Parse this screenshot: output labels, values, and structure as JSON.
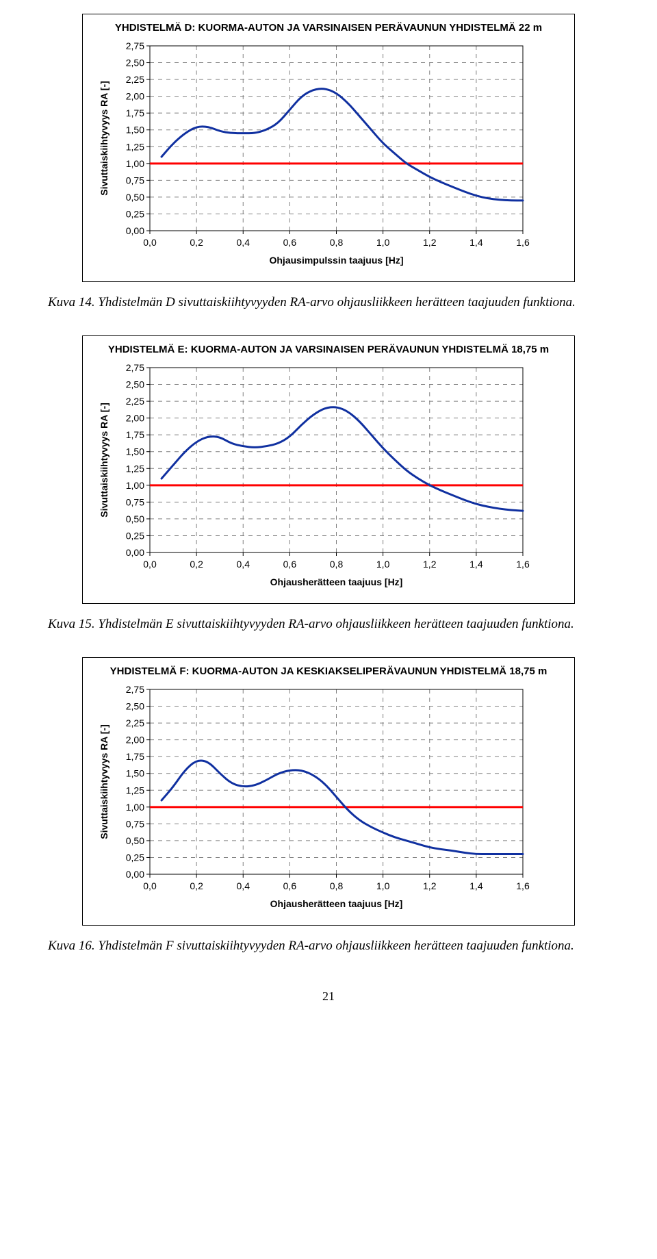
{
  "charts": [
    {
      "title": "YHDISTELMÄ D: KUORMA-AUTON JA VARSINAISEN PERÄVAUNUN YHDISTELMÄ 22 m",
      "ylabel": "Sivuttaiskiihtyvyys RA [-]",
      "xlabel": "Ohjausimpulssin taajuus [Hz]",
      "xticks": [
        "0,0",
        "0,2",
        "0,4",
        "0,6",
        "0,8",
        "1,0",
        "1,2",
        "1,4",
        "1,6"
      ],
      "yticks": [
        "2,75",
        "2,50",
        "2,25",
        "2,00",
        "1,75",
        "1,50",
        "1,25",
        "1,00",
        "0,75",
        "0,50",
        "0,25",
        "0,00"
      ],
      "ylim": [
        0,
        2.75
      ],
      "xlim": [
        0,
        1.6
      ],
      "ref_line_value": 1.0,
      "ref_line_color": "#ff0000",
      "data_color": "#1030a0",
      "data_width": 3,
      "grid_color": "#808080",
      "grid_dash": "6,6",
      "axis_color": "#000000",
      "background": "#ffffff",
      "title_fontsize": 15,
      "label_fontsize": 14,
      "tick_fontsize": 14,
      "points": [
        {
          "x": 0.05,
          "y": 1.1
        },
        {
          "x": 0.1,
          "y": 1.3
        },
        {
          "x": 0.15,
          "y": 1.45
        },
        {
          "x": 0.2,
          "y": 1.55
        },
        {
          "x": 0.25,
          "y": 1.55
        },
        {
          "x": 0.3,
          "y": 1.48
        },
        {
          "x": 0.35,
          "y": 1.45
        },
        {
          "x": 0.4,
          "y": 1.45
        },
        {
          "x": 0.45,
          "y": 1.45
        },
        {
          "x": 0.5,
          "y": 1.5
        },
        {
          "x": 0.55,
          "y": 1.6
        },
        {
          "x": 0.6,
          "y": 1.8
        },
        {
          "x": 0.65,
          "y": 2.0
        },
        {
          "x": 0.7,
          "y": 2.1
        },
        {
          "x": 0.75,
          "y": 2.12
        },
        {
          "x": 0.8,
          "y": 2.05
        },
        {
          "x": 0.85,
          "y": 1.9
        },
        {
          "x": 0.9,
          "y": 1.7
        },
        {
          "x": 0.95,
          "y": 1.5
        },
        {
          "x": 1.0,
          "y": 1.3
        },
        {
          "x": 1.05,
          "y": 1.15
        },
        {
          "x": 1.1,
          "y": 1.0
        },
        {
          "x": 1.15,
          "y": 0.9
        },
        {
          "x": 1.2,
          "y": 0.8
        },
        {
          "x": 1.25,
          "y": 0.72
        },
        {
          "x": 1.3,
          "y": 0.65
        },
        {
          "x": 1.35,
          "y": 0.58
        },
        {
          "x": 1.4,
          "y": 0.52
        },
        {
          "x": 1.45,
          "y": 0.48
        },
        {
          "x": 1.5,
          "y": 0.46
        },
        {
          "x": 1.55,
          "y": 0.45
        },
        {
          "x": 1.6,
          "y": 0.45
        }
      ]
    },
    {
      "title": "YHDISTELMÄ E: KUORMA-AUTON JA VARSINAISEN PERÄVAUNUN YHDISTELMÄ 18,75 m",
      "ylabel": "Sivuttaiskiihtyvyys RA [-]",
      "xlabel": "Ohjausherätteen taajuus [Hz]",
      "xticks": [
        "0,0",
        "0,2",
        "0,4",
        "0,6",
        "0,8",
        "1,0",
        "1,2",
        "1,4",
        "1,6"
      ],
      "yticks": [
        "2,75",
        "2,50",
        "2,25",
        "2,00",
        "1,75",
        "1,50",
        "1,25",
        "1,00",
        "0,75",
        "0,50",
        "0,25",
        "0,00"
      ],
      "ylim": [
        0,
        2.75
      ],
      "xlim": [
        0,
        1.6
      ],
      "ref_line_value": 1.0,
      "ref_line_color": "#ff0000",
      "data_color": "#1030a0",
      "data_width": 3,
      "grid_color": "#808080",
      "grid_dash": "6,6",
      "axis_color": "#000000",
      "background": "#ffffff",
      "title_fontsize": 15,
      "label_fontsize": 14,
      "tick_fontsize": 14,
      "points": [
        {
          "x": 0.05,
          "y": 1.1
        },
        {
          "x": 0.1,
          "y": 1.3
        },
        {
          "x": 0.15,
          "y": 1.5
        },
        {
          "x": 0.2,
          "y": 1.65
        },
        {
          "x": 0.25,
          "y": 1.73
        },
        {
          "x": 0.3,
          "y": 1.72
        },
        {
          "x": 0.35,
          "y": 1.62
        },
        {
          "x": 0.4,
          "y": 1.58
        },
        {
          "x": 0.45,
          "y": 1.56
        },
        {
          "x": 0.5,
          "y": 1.58
        },
        {
          "x": 0.55,
          "y": 1.62
        },
        {
          "x": 0.6,
          "y": 1.72
        },
        {
          "x": 0.65,
          "y": 1.9
        },
        {
          "x": 0.7,
          "y": 2.05
        },
        {
          "x": 0.75,
          "y": 2.15
        },
        {
          "x": 0.8,
          "y": 2.17
        },
        {
          "x": 0.85,
          "y": 2.1
        },
        {
          "x": 0.9,
          "y": 1.95
        },
        {
          "x": 0.95,
          "y": 1.75
        },
        {
          "x": 1.0,
          "y": 1.55
        },
        {
          "x": 1.05,
          "y": 1.38
        },
        {
          "x": 1.1,
          "y": 1.22
        },
        {
          "x": 1.15,
          "y": 1.1
        },
        {
          "x": 1.2,
          "y": 1.0
        },
        {
          "x": 1.25,
          "y": 0.92
        },
        {
          "x": 1.3,
          "y": 0.85
        },
        {
          "x": 1.35,
          "y": 0.78
        },
        {
          "x": 1.4,
          "y": 0.72
        },
        {
          "x": 1.45,
          "y": 0.68
        },
        {
          "x": 1.5,
          "y": 0.65
        },
        {
          "x": 1.55,
          "y": 0.63
        },
        {
          "x": 1.6,
          "y": 0.62
        }
      ]
    },
    {
      "title": "YHDISTELMÄ F: KUORMA-AUTON JA KESKIAKSELIPERÄVAUNUN YHDISTELMÄ 18,75 m",
      "ylabel": "Sivuttaiskiihtyvyys RA [-]",
      "xlabel": "Ohjausherätteen taajuus [Hz]",
      "xticks": [
        "0,0",
        "0,2",
        "0,4",
        "0,6",
        "0,8",
        "1,0",
        "1,2",
        "1,4",
        "1,6"
      ],
      "yticks": [
        "2,75",
        "2,50",
        "2,25",
        "2,00",
        "1,75",
        "1,50",
        "1,25",
        "1,00",
        "0,75",
        "0,50",
        "0,25",
        "0,00"
      ],
      "ylim": [
        0,
        2.75
      ],
      "xlim": [
        0,
        1.6
      ],
      "ref_line_value": 1.0,
      "ref_line_color": "#ff0000",
      "data_color": "#1030a0",
      "data_width": 3,
      "grid_color": "#808080",
      "grid_dash": "6,6",
      "axis_color": "#000000",
      "background": "#ffffff",
      "title_fontsize": 15,
      "label_fontsize": 14,
      "tick_fontsize": 14,
      "points": [
        {
          "x": 0.05,
          "y": 1.1
        },
        {
          "x": 0.1,
          "y": 1.3
        },
        {
          "x": 0.15,
          "y": 1.55
        },
        {
          "x": 0.2,
          "y": 1.7
        },
        {
          "x": 0.25,
          "y": 1.68
        },
        {
          "x": 0.3,
          "y": 1.5
        },
        {
          "x": 0.35,
          "y": 1.35
        },
        {
          "x": 0.4,
          "y": 1.3
        },
        {
          "x": 0.45,
          "y": 1.32
        },
        {
          "x": 0.5,
          "y": 1.4
        },
        {
          "x": 0.55,
          "y": 1.5
        },
        {
          "x": 0.6,
          "y": 1.55
        },
        {
          "x": 0.65,
          "y": 1.55
        },
        {
          "x": 0.7,
          "y": 1.48
        },
        {
          "x": 0.75,
          "y": 1.35
        },
        {
          "x": 0.8,
          "y": 1.15
        },
        {
          "x": 0.85,
          "y": 0.95
        },
        {
          "x": 0.9,
          "y": 0.8
        },
        {
          "x": 0.95,
          "y": 0.7
        },
        {
          "x": 1.0,
          "y": 0.62
        },
        {
          "x": 1.05,
          "y": 0.55
        },
        {
          "x": 1.1,
          "y": 0.5
        },
        {
          "x": 1.15,
          "y": 0.45
        },
        {
          "x": 1.2,
          "y": 0.4
        },
        {
          "x": 1.25,
          "y": 0.37
        },
        {
          "x": 1.3,
          "y": 0.35
        },
        {
          "x": 1.35,
          "y": 0.32
        },
        {
          "x": 1.4,
          "y": 0.3
        },
        {
          "x": 1.45,
          "y": 0.3
        },
        {
          "x": 1.5,
          "y": 0.3
        },
        {
          "x": 1.55,
          "y": 0.3
        },
        {
          "x": 1.6,
          "y": 0.3
        }
      ]
    }
  ],
  "captions": [
    "Kuva 14. Yhdistelmän D sivuttaiskiihtyvyyden RA-arvo ohjausliikkeen herätteen taajuuden funktiona.",
    "Kuva 15. Yhdistelmän E sivuttaiskiihtyvyyden RA-arvo ohjausliikkeen herätteen taajuuden funktiona.",
    "Kuva 16. Yhdistelmän F sivuttaiskiihtyvyyden RA-arvo ohjausliikkeen herätteen taajuuden funktiona."
  ],
  "page_number": "21"
}
